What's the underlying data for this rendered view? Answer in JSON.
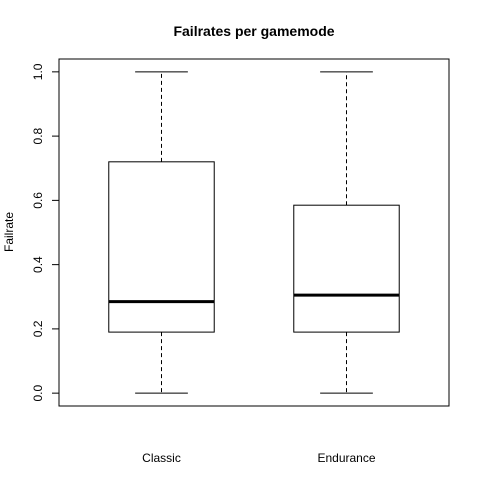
{
  "chart_data": {
    "type": "boxplot",
    "title": "Failrates per gamemode",
    "xlabel": "",
    "ylabel": "Failrate",
    "ylim": [
      -0.04,
      1.04
    ],
    "yticks": [
      0.0,
      0.2,
      0.4,
      0.6,
      0.8,
      1.0
    ],
    "ytick_labels": [
      "0.0",
      "0.2",
      "0.4",
      "0.6",
      "0.8",
      "1.0"
    ],
    "categories": [
      "Classic",
      "Endurance"
    ],
    "boxes": [
      {
        "category": "Classic",
        "min": 0.0,
        "q1": 0.19,
        "median": 0.285,
        "q3": 0.72,
        "max": 1.0
      },
      {
        "category": "Endurance",
        "min": 0.0,
        "q1": 0.19,
        "median": 0.305,
        "q3": 0.585,
        "max": 1.0
      }
    ],
    "grid": false,
    "legend": "none"
  }
}
